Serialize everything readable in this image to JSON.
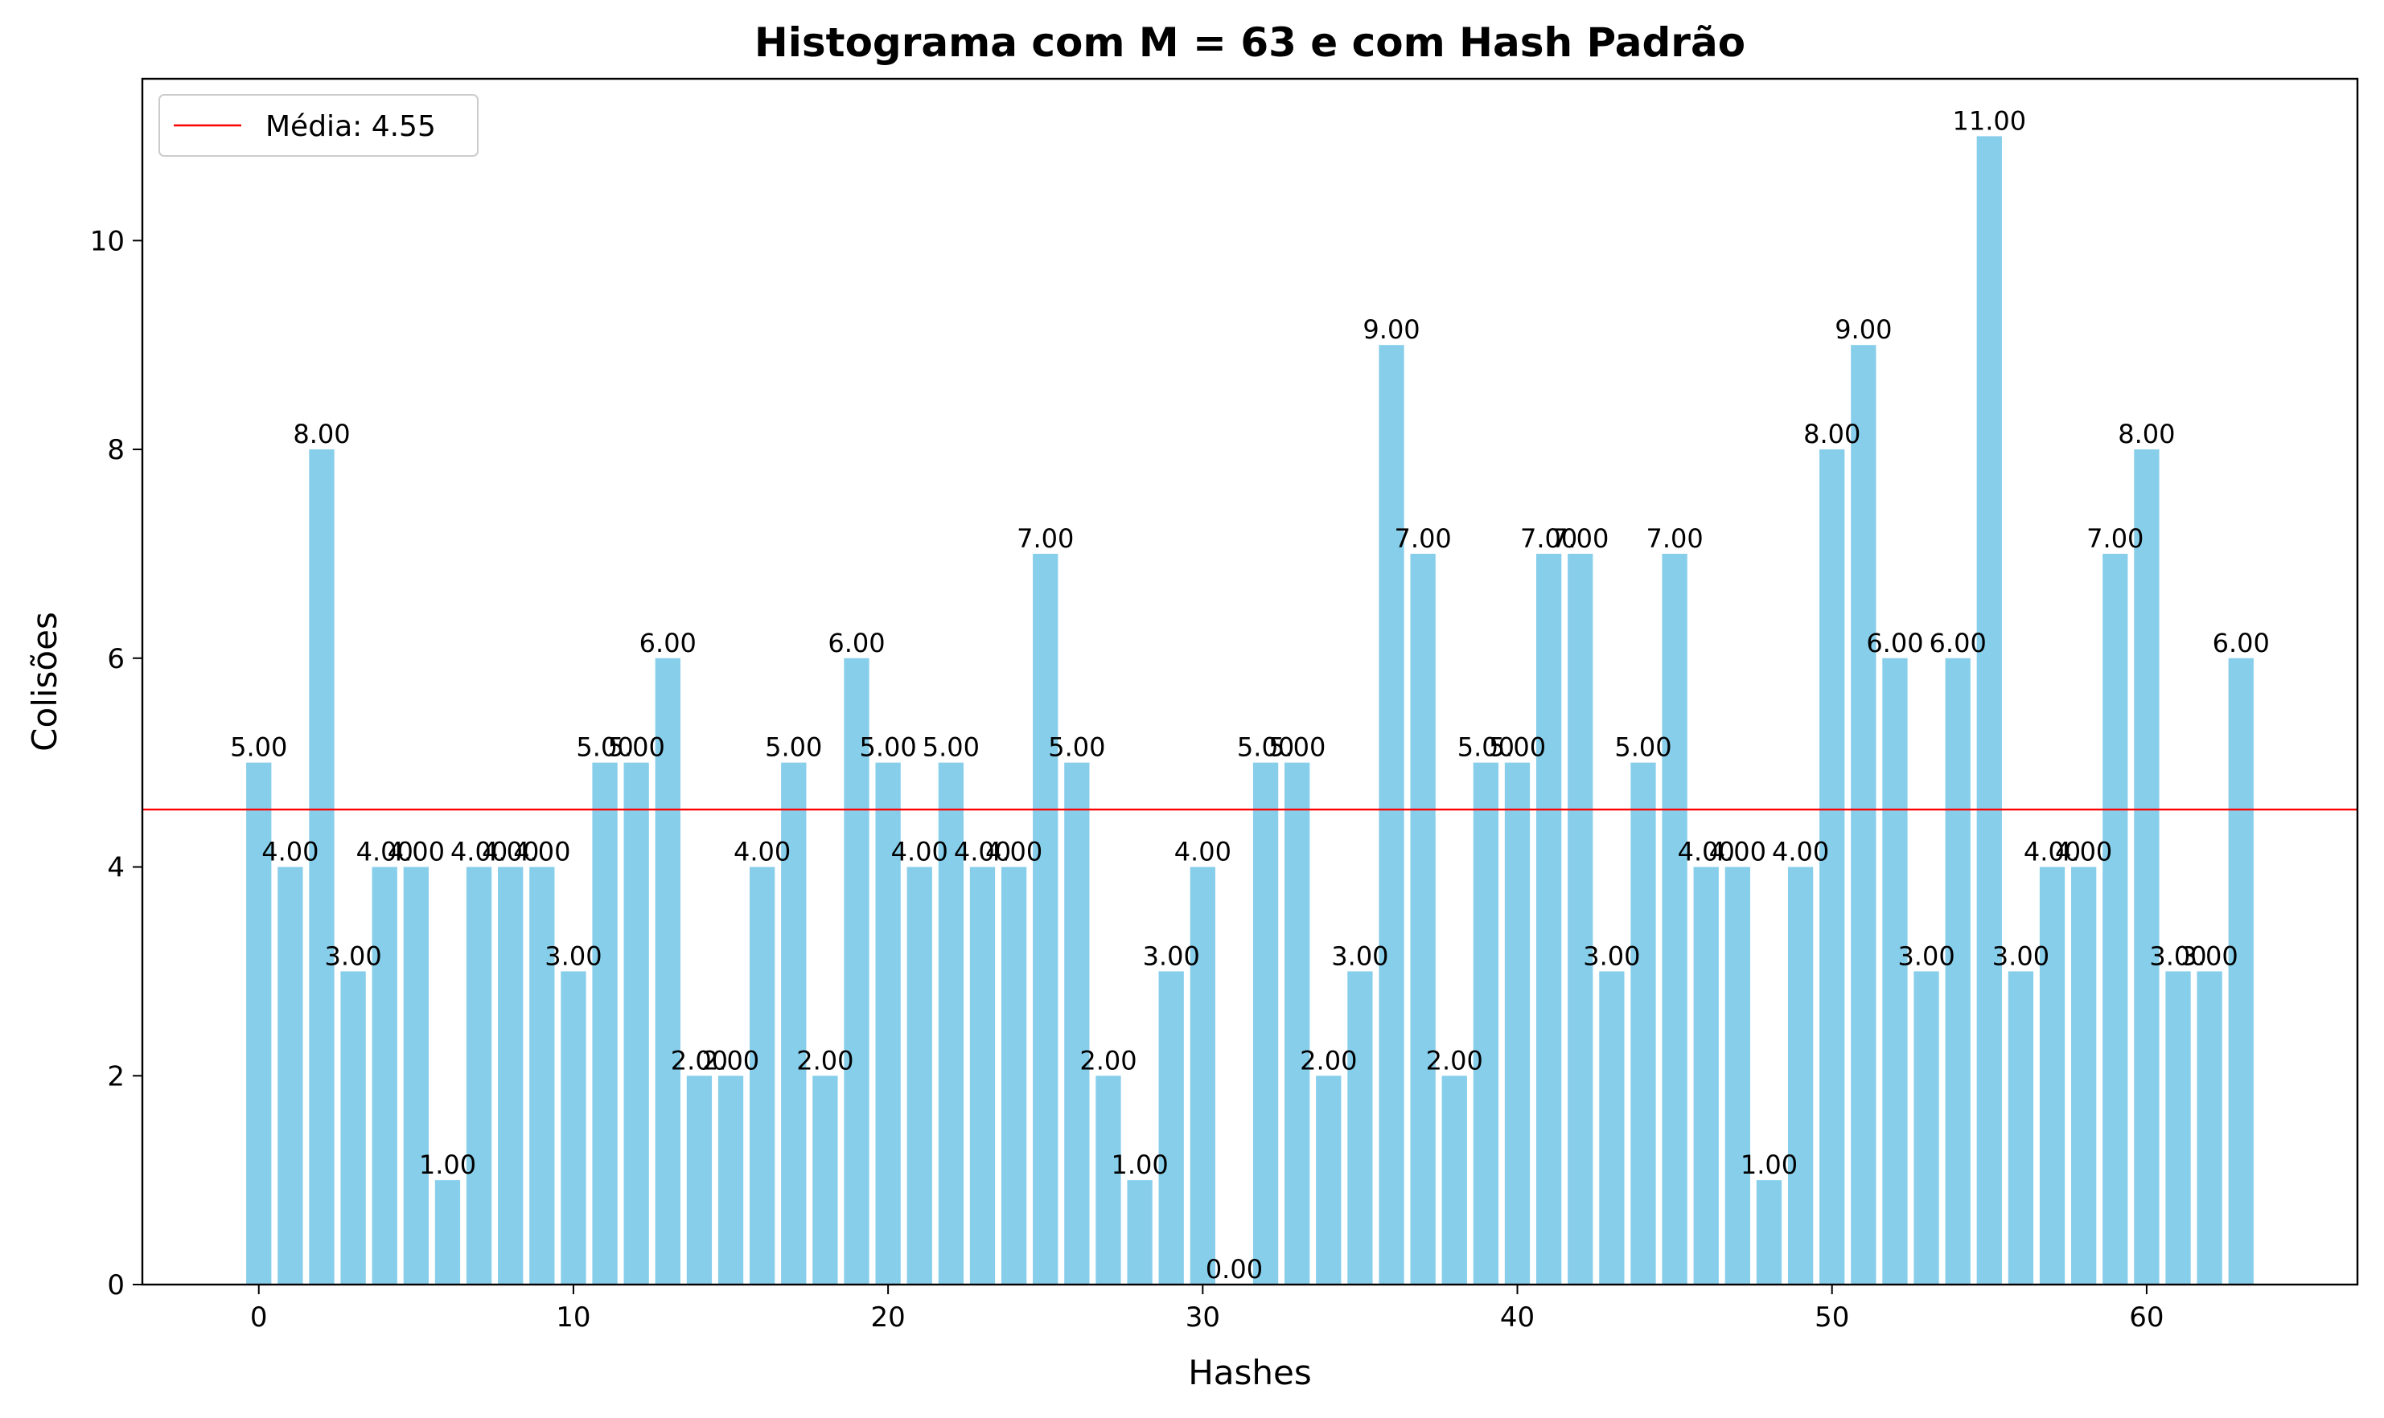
{
  "chart_data": {
    "type": "bar",
    "title": "Histograma com M = 63 e com Hash Padrão",
    "xlabel": "Hashes",
    "ylabel": "Colisões",
    "x": [
      0,
      1,
      2,
      3,
      4,
      5,
      6,
      7,
      8,
      9,
      10,
      11,
      12,
      13,
      14,
      15,
      16,
      17,
      18,
      19,
      20,
      21,
      22,
      23,
      24,
      25,
      26,
      27,
      28,
      29,
      30,
      31,
      32,
      33,
      34,
      35,
      36,
      37,
      38,
      39,
      40,
      41,
      42,
      43,
      44,
      45,
      46,
      47,
      48,
      49,
      50,
      51,
      52,
      53,
      54,
      55,
      56,
      57,
      58,
      59,
      60,
      61,
      62,
      63
    ],
    "values": [
      5,
      4,
      8,
      3,
      4,
      4,
      1,
      4,
      4,
      4,
      3,
      5,
      5,
      6,
      2,
      2,
      4,
      5,
      2,
      6,
      5,
      4,
      5,
      4,
      4,
      7,
      5,
      2,
      1,
      3,
      4,
      0,
      5,
      5,
      2,
      3,
      9,
      7,
      2,
      5,
      5,
      7,
      7,
      3,
      5,
      7,
      4,
      4,
      1,
      4,
      8,
      9,
      6,
      3,
      6,
      11,
      3,
      4,
      4,
      7,
      8,
      3,
      3,
      6
    ],
    "value_labels": [
      "5.00",
      "4.00",
      "8.00",
      "3.00",
      "4.00",
      "4.00",
      "1.00",
      "4.00",
      "4.00",
      "4.00",
      "3.00",
      "5.00",
      "5.00",
      "6.00",
      "2.00",
      "2.00",
      "4.00",
      "5.00",
      "2.00",
      "6.00",
      "5.00",
      "4.00",
      "5.00",
      "4.00",
      "4.00",
      "7.00",
      "5.00",
      "2.00",
      "1.00",
      "3.00",
      "4.00",
      "0.00",
      "5.00",
      "5.00",
      "2.00",
      "3.00",
      "9.00",
      "7.00",
      "2.00",
      "5.00",
      "5.00",
      "7.00",
      "7.00",
      "3.00",
      "5.00",
      "7.00",
      "4.00",
      "4.00",
      "1.00",
      "4.00",
      "8.00",
      "9.00",
      "6.00",
      "3.00",
      "6.00",
      "11.00",
      "3.00",
      "4.00",
      "4.00",
      "7.00",
      "8.00",
      "3.00",
      "3.00",
      "6.00"
    ],
    "bar_color": "#87ceeb",
    "mean": 4.55,
    "mean_color": "#ff0000",
    "legend": {
      "placement": "top-left",
      "entries": [
        {
          "label": "Média: 4.55",
          "color": "#ff0000"
        }
      ]
    },
    "xlim": [
      -3.7,
      66.7
    ],
    "ylim": [
      0,
      11.55
    ],
    "xticks": [
      0,
      10,
      20,
      30,
      40,
      50,
      60
    ],
    "xtick_labels": [
      "0",
      "10",
      "20",
      "30",
      "40",
      "50",
      "60"
    ],
    "yticks": [
      0,
      2,
      4,
      6,
      8,
      10
    ],
    "ytick_labels": [
      "0",
      "2",
      "4",
      "6",
      "8",
      "10"
    ],
    "grid": false
  }
}
